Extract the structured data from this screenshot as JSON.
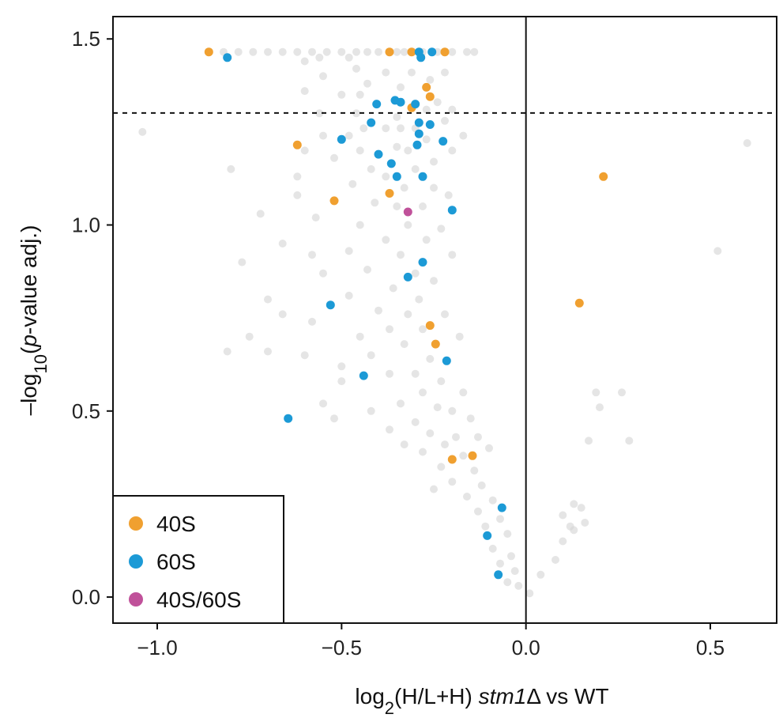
{
  "chart_data": {
    "type": "scatter",
    "title": "",
    "xlabel": {
      "prefix": "log",
      "subscript": "2",
      "middle": "(H/L+H) ",
      "italic": "stm1",
      "suffix": "Δ vs WT"
    },
    "ylabel": {
      "prefix": "-log",
      "subscript": "10",
      "open": "(",
      "italic": "p",
      "suffix": "-value adj.)"
    },
    "xlim": [
      -1.12,
      0.68
    ],
    "ylim": [
      -0.07,
      1.56
    ],
    "x_ticks": [
      {
        "value": -1.0,
        "label": "-1.0"
      },
      {
        "value": -0.5,
        "label": "-0.5"
      },
      {
        "value": 0.0,
        "label": "0.0"
      },
      {
        "value": 0.5,
        "label": "0.5"
      }
    ],
    "y_ticks": [
      {
        "value": 0.0,
        "label": "0.0"
      },
      {
        "value": 0.5,
        "label": "0.5"
      },
      {
        "value": 1.0,
        "label": "1.0"
      },
      {
        "value": 1.5,
        "label": "1.5"
      }
    ],
    "significance_threshold_y": 1.301,
    "zero_line_x": 0.0,
    "grid": false,
    "legend_position": "bottom-left",
    "colors": {
      "background_points": "#d3d3d3",
      "40S": "#f0a030",
      "60S": "#1c9ad6",
      "40S/60S": "#c0519a"
    },
    "series": [
      {
        "name": "40S",
        "color": "#f0a030",
        "points": [
          [
            -0.86,
            1.465
          ],
          [
            -0.37,
            1.465
          ],
          [
            -0.31,
            1.465
          ],
          [
            -0.22,
            1.465
          ],
          [
            -0.27,
            1.37
          ],
          [
            -0.26,
            1.345
          ],
          [
            -0.31,
            1.315
          ],
          [
            -0.62,
            1.215
          ],
          [
            -0.52,
            1.065
          ],
          [
            -0.37,
            1.085
          ],
          [
            -0.26,
            0.73
          ],
          [
            -0.245,
            0.68
          ],
          [
            -0.2,
            0.37
          ],
          [
            -0.145,
            0.38
          ],
          [
            0.21,
            1.13
          ],
          [
            0.145,
            0.79
          ]
        ]
      },
      {
        "name": "60S",
        "color": "#1c9ad6",
        "points": [
          [
            -0.81,
            1.45
          ],
          [
            -0.29,
            1.465
          ],
          [
            -0.255,
            1.465
          ],
          [
            -0.285,
            1.45
          ],
          [
            -0.405,
            1.325
          ],
          [
            -0.355,
            1.335
          ],
          [
            -0.34,
            1.33
          ],
          [
            -0.3,
            1.325
          ],
          [
            -0.42,
            1.275
          ],
          [
            -0.29,
            1.275
          ],
          [
            -0.26,
            1.27
          ],
          [
            -0.29,
            1.245
          ],
          [
            -0.5,
            1.23
          ],
          [
            -0.225,
            1.225
          ],
          [
            -0.295,
            1.215
          ],
          [
            -0.4,
            1.19
          ],
          [
            -0.365,
            1.165
          ],
          [
            -0.35,
            1.13
          ],
          [
            -0.28,
            1.13
          ],
          [
            -0.2,
            1.04
          ],
          [
            -0.28,
            0.9
          ],
          [
            -0.32,
            0.86
          ],
          [
            -0.53,
            0.785
          ],
          [
            -0.215,
            0.635
          ],
          [
            -0.44,
            0.595
          ],
          [
            -0.645,
            0.48
          ],
          [
            -0.065,
            0.24
          ],
          [
            -0.105,
            0.165
          ],
          [
            -0.075,
            0.06
          ]
        ]
      },
      {
        "name": "40S/60S",
        "color": "#c0519a",
        "points": [
          [
            -0.32,
            1.035
          ]
        ]
      }
    ],
    "background_points": [
      [
        -0.82,
        1.465
      ],
      [
        -0.78,
        1.465
      ],
      [
        -0.74,
        1.465
      ],
      [
        -0.7,
        1.465
      ],
      [
        -0.66,
        1.465
      ],
      [
        -0.62,
        1.465
      ],
      [
        -0.58,
        1.465
      ],
      [
        -0.54,
        1.465
      ],
      [
        -0.5,
        1.465
      ],
      [
        -0.46,
        1.465
      ],
      [
        -0.43,
        1.465
      ],
      [
        -0.4,
        1.465
      ],
      [
        -0.35,
        1.465
      ],
      [
        -0.33,
        1.465
      ],
      [
        -0.28,
        1.465
      ],
      [
        -0.24,
        1.465
      ],
      [
        -0.2,
        1.465
      ],
      [
        -0.16,
        1.465
      ],
      [
        -0.14,
        1.465
      ],
      [
        -0.48,
        1.45
      ],
      [
        -0.56,
        1.45
      ],
      [
        -0.6,
        1.44
      ],
      [
        -0.55,
        1.4
      ],
      [
        -0.46,
        1.42
      ],
      [
        -0.38,
        1.41
      ],
      [
        -0.31,
        1.41
      ],
      [
        -0.22,
        1.41
      ],
      [
        -0.26,
        1.39
      ],
      [
        -0.43,
        1.38
      ],
      [
        -0.6,
        1.36
      ],
      [
        -0.34,
        1.37
      ],
      [
        -0.5,
        1.35
      ],
      [
        -0.45,
        1.35
      ],
      [
        -0.24,
        1.33
      ],
      [
        -0.27,
        1.31
      ],
      [
        -0.2,
        1.31
      ],
      [
        -0.35,
        1.29
      ],
      [
        -0.46,
        1.3
      ],
      [
        -0.56,
        1.3
      ],
      [
        -0.44,
        1.26
      ],
      [
        -0.38,
        1.26
      ],
      [
        -0.34,
        1.26
      ],
      [
        -0.3,
        1.26
      ],
      [
        -0.22,
        1.28
      ],
      [
        -0.48,
        1.24
      ],
      [
        -0.55,
        1.24
      ],
      [
        -0.27,
        1.23
      ],
      [
        -0.35,
        1.21
      ],
      [
        -0.32,
        1.2
      ],
      [
        -0.17,
        1.24
      ],
      [
        -0.45,
        1.2
      ],
      [
        -0.6,
        1.2
      ],
      [
        -0.52,
        1.18
      ],
      [
        -0.42,
        1.15
      ],
      [
        -0.3,
        1.15
      ],
      [
        -0.25,
        1.17
      ],
      [
        -0.2,
        1.2
      ],
      [
        -0.38,
        1.13
      ],
      [
        -0.62,
        1.13
      ],
      [
        -0.47,
        1.11
      ],
      [
        -0.25,
        1.1
      ],
      [
        -0.33,
        1.1
      ],
      [
        -0.21,
        1.08
      ],
      [
        -0.41,
        1.06
      ],
      [
        -0.35,
        1.05
      ],
      [
        -0.28,
        1.05
      ],
      [
        -0.62,
        1.08
      ],
      [
        -0.57,
        1.02
      ],
      [
        -0.45,
        1.0
      ],
      [
        -0.32,
        1.0
      ],
      [
        -0.23,
        0.99
      ],
      [
        -0.38,
        0.96
      ],
      [
        -0.27,
        0.96
      ],
      [
        -0.48,
        0.93
      ],
      [
        -0.34,
        0.92
      ],
      [
        -0.2,
        0.92
      ],
      [
        -0.43,
        0.88
      ],
      [
        -0.3,
        0.87
      ],
      [
        -0.55,
        0.87
      ],
      [
        -0.25,
        0.85
      ],
      [
        -0.36,
        0.83
      ],
      [
        -0.48,
        0.81
      ],
      [
        -0.29,
        0.8
      ],
      [
        -0.4,
        0.77
      ],
      [
        -0.32,
        0.76
      ],
      [
        -0.22,
        0.76
      ],
      [
        -0.37,
        0.72
      ],
      [
        -0.28,
        0.72
      ],
      [
        -0.45,
        0.7
      ],
      [
        -0.18,
        0.7
      ],
      [
        -0.33,
        0.68
      ],
      [
        -0.42,
        0.65
      ],
      [
        -0.26,
        0.64
      ],
      [
        -0.3,
        0.6
      ],
      [
        -0.37,
        0.6
      ],
      [
        -0.23,
        0.58
      ],
      [
        -0.5,
        0.58
      ],
      [
        -0.28,
        0.55
      ],
      [
        -0.17,
        0.55
      ],
      [
        -0.34,
        0.52
      ],
      [
        -0.24,
        0.51
      ],
      [
        -0.42,
        0.5
      ],
      [
        -0.2,
        0.5
      ],
      [
        -0.3,
        0.47
      ],
      [
        -0.15,
        0.48
      ],
      [
        -0.37,
        0.45
      ],
      [
        -0.26,
        0.44
      ],
      [
        -0.19,
        0.43
      ],
      [
        -0.33,
        0.41
      ],
      [
        -0.22,
        0.41
      ],
      [
        -0.13,
        0.43
      ],
      [
        -0.28,
        0.39
      ],
      [
        -0.17,
        0.38
      ],
      [
        -0.1,
        0.4
      ],
      [
        -0.23,
        0.35
      ],
      [
        -0.14,
        0.34
      ],
      [
        -0.2,
        0.31
      ],
      [
        -0.12,
        0.3
      ],
      [
        -0.25,
        0.29
      ],
      [
        -0.16,
        0.27
      ],
      [
        -0.09,
        0.26
      ],
      [
        -0.13,
        0.23
      ],
      [
        -0.07,
        0.21
      ],
      [
        -0.11,
        0.19
      ],
      [
        -0.05,
        0.17
      ],
      [
        -0.09,
        0.13
      ],
      [
        -0.04,
        0.11
      ],
      [
        -0.07,
        0.09
      ],
      [
        -0.03,
        0.07
      ],
      [
        -0.05,
        0.04
      ],
      [
        -0.02,
        0.03
      ],
      [
        0.01,
        0.01
      ],
      [
        -1.04,
        1.25
      ],
      [
        -0.8,
        1.15
      ],
      [
        -0.72,
        1.03
      ],
      [
        -0.66,
        0.95
      ],
      [
        -0.77,
        0.9
      ],
      [
        -0.7,
        0.8
      ],
      [
        -0.66,
        0.76
      ],
      [
        -0.75,
        0.7
      ],
      [
        -0.81,
        0.66
      ],
      [
        -0.7,
        0.66
      ],
      [
        -0.58,
        0.92
      ],
      [
        -0.58,
        0.74
      ],
      [
        -0.6,
        0.65
      ],
      [
        -0.55,
        0.52
      ],
      [
        -0.52,
        0.48
      ],
      [
        -0.5,
        0.62
      ],
      [
        0.04,
        0.06
      ],
      [
        0.08,
        0.1
      ],
      [
        0.1,
        0.15
      ],
      [
        0.12,
        0.19
      ],
      [
        0.1,
        0.22
      ],
      [
        0.13,
        0.25
      ],
      [
        0.15,
        0.24
      ],
      [
        0.16,
        0.2
      ],
      [
        0.13,
        0.18
      ],
      [
        0.19,
        0.55
      ],
      [
        0.2,
        0.51
      ],
      [
        0.26,
        0.55
      ],
      [
        0.17,
        0.42
      ],
      [
        0.28,
        0.42
      ],
      [
        0.52,
        0.93
      ],
      [
        0.6,
        1.22
      ]
    ],
    "legend": [
      {
        "label": "40S",
        "series": "40S"
      },
      {
        "label": "60S",
        "series": "60S"
      },
      {
        "label": "40S/60S",
        "series": "40S/60S"
      }
    ]
  }
}
